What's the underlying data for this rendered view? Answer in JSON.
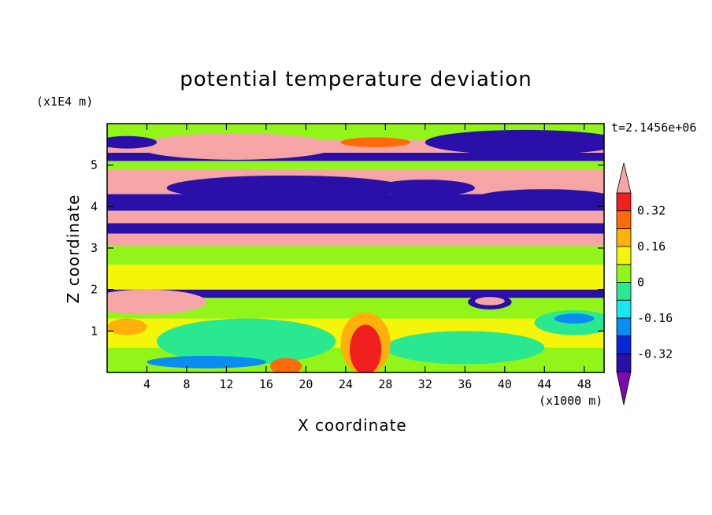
{
  "chart_data": {
    "type": "heatmap",
    "title": "potential temperature deviation",
    "xlabel": "X coordinate",
    "ylabel": "Z coordinate",
    "x_unit": "(x1000 m)",
    "y_unit": "(x1E4 m)",
    "time_label": "t=2.1456e+06",
    "xlim": [
      0,
      50
    ],
    "ylim": [
      0,
      6
    ],
    "x_ticks": [
      4,
      8,
      12,
      16,
      20,
      24,
      28,
      32,
      36,
      40,
      44,
      48
    ],
    "y_ticks": [
      1,
      2,
      3,
      4,
      5
    ],
    "colorbar": {
      "levels": [
        -0.4,
        -0.32,
        -0.24,
        -0.16,
        -0.08,
        0,
        0.08,
        0.16,
        0.24,
        0.32,
        0.4
      ],
      "colors": [
        "#7a0ab0",
        "#2a10a8",
        "#0a28d8",
        "#0a8cf0",
        "#19e6f0",
        "#2ae890",
        "#92f51a",
        "#f5f50a",
        "#ffb00a",
        "#ff6a0a",
        "#f02020",
        "#f5a5a5"
      ],
      "tick_labels": [
        "0.32",
        "0.16",
        "0",
        "-0.16",
        "-0.32"
      ],
      "tick_values": [
        0.32,
        0.16,
        0,
        -0.16,
        -0.32
      ]
    },
    "bands": [
      {
        "z0": 0.0,
        "z1": 0.6,
        "value": 0.02
      },
      {
        "z0": 0.6,
        "z1": 1.3,
        "value": 0.1
      },
      {
        "z0": 1.3,
        "z1": 1.8,
        "value": 0.02
      },
      {
        "z0": 1.8,
        "z1": 2.0,
        "value": -0.4
      },
      {
        "z0": 2.0,
        "z1": 2.6,
        "value": 0.08
      },
      {
        "z0": 2.6,
        "z1": 3.05,
        "value": 0.04
      },
      {
        "z0": 3.05,
        "z1": 3.35,
        "value": 0.45
      },
      {
        "z0": 3.35,
        "z1": 3.6,
        "value": -0.4
      },
      {
        "z0": 3.6,
        "z1": 3.9,
        "value": 0.45
      },
      {
        "z0": 3.9,
        "z1": 4.3,
        "value": -0.4
      },
      {
        "z0": 4.3,
        "z1": 4.9,
        "value": 0.45
      },
      {
        "z0": 4.9,
        "z1": 5.1,
        "value": 0.02
      },
      {
        "z0": 5.1,
        "z1": 5.3,
        "value": -0.4
      },
      {
        "z0": 5.3,
        "z1": 5.6,
        "value": 0.45
      },
      {
        "z0": 5.6,
        "z1": 6.0,
        "value": 0.02
      }
    ],
    "features": [
      {
        "shape": "ellipse",
        "x": 13,
        "z": 5.45,
        "rx": 10,
        "rz": 0.32,
        "value": 0.45
      },
      {
        "shape": "ellipse",
        "x": 27,
        "z": 5.55,
        "rx": 3.5,
        "rz": 0.12,
        "value": 0.3
      },
      {
        "shape": "ellipse",
        "x": 42,
        "z": 5.55,
        "rx": 10,
        "rz": 0.3,
        "value": -0.4
      },
      {
        "shape": "ellipse",
        "x": 2,
        "z": 5.55,
        "rx": 3,
        "rz": 0.15,
        "value": -0.4
      },
      {
        "shape": "ellipse",
        "x": 18,
        "z": 4.45,
        "rx": 12,
        "rz": 0.3,
        "value": -0.4
      },
      {
        "shape": "ellipse",
        "x": 32,
        "z": 4.45,
        "rx": 5,
        "rz": 0.2,
        "value": -0.4
      },
      {
        "shape": "ellipse",
        "x": 44,
        "z": 4.2,
        "rx": 7,
        "rz": 0.22,
        "value": -0.4
      },
      {
        "shape": "ellipse",
        "x": 4,
        "z": 1.7,
        "rx": 6,
        "rz": 0.3,
        "value": 0.45
      },
      {
        "shape": "ellipse",
        "x": 38.5,
        "z": 1.7,
        "rx": 2.2,
        "rz": 0.18,
        "value": -0.4
      },
      {
        "shape": "ellipse",
        "x": 38.5,
        "z": 1.72,
        "rx": 1.5,
        "rz": 0.1,
        "value": 0.45
      },
      {
        "shape": "ellipse",
        "x": 14,
        "z": 0.75,
        "rx": 9,
        "rz": 0.55,
        "value": -0.05
      },
      {
        "shape": "ellipse",
        "x": 10,
        "z": 0.25,
        "rx": 6,
        "rz": 0.15,
        "value": -0.2
      },
      {
        "shape": "ellipse",
        "x": 36,
        "z": 0.6,
        "rx": 8,
        "rz": 0.4,
        "value": -0.05
      },
      {
        "shape": "ellipse",
        "x": 47,
        "z": 1.2,
        "rx": 4,
        "rz": 0.3,
        "value": -0.05
      },
      {
        "shape": "ellipse",
        "x": 47,
        "z": 1.3,
        "rx": 2,
        "rz": 0.12,
        "value": -0.2
      },
      {
        "shape": "ellipse",
        "x": 26,
        "z": 0.7,
        "rx": 2.5,
        "rz": 0.75,
        "value": 0.2
      },
      {
        "shape": "ellipse",
        "x": 26,
        "z": 0.55,
        "rx": 1.6,
        "rz": 0.6,
        "value": 0.34
      },
      {
        "shape": "ellipse",
        "x": 18,
        "z": 0.15,
        "rx": 1.6,
        "rz": 0.2,
        "value": 0.3
      },
      {
        "shape": "ellipse",
        "x": 2,
        "z": 1.1,
        "rx": 2,
        "rz": 0.2,
        "value": 0.2
      }
    ]
  }
}
